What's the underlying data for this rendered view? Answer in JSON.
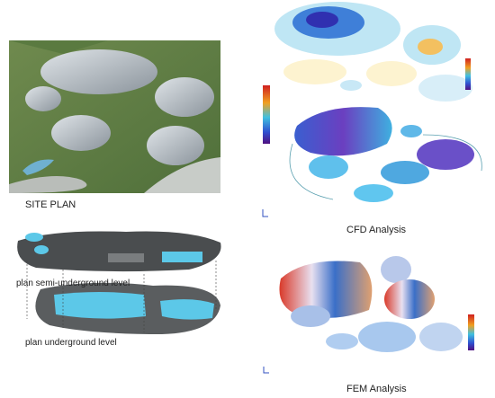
{
  "panels": {
    "site_plan": {
      "label": "SITE PLAN"
    },
    "cfd": {
      "label": "CFD Analysis"
    },
    "plan": {
      "levels": [
        "plan semi-underground level",
        "plan underground level"
      ]
    },
    "fem": {
      "label": "FEM Analysis"
    }
  }
}
